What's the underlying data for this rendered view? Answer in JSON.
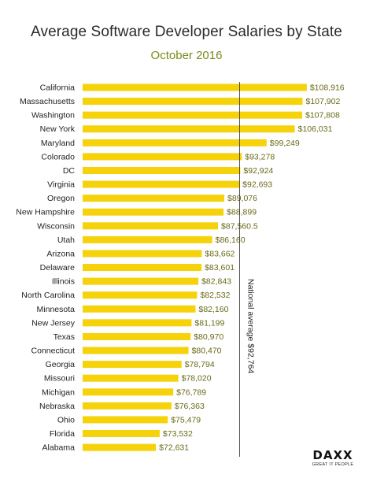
{
  "header": {
    "title": "Average Software Developer Salaries by State",
    "subtitle": "October 2016"
  },
  "colors": {
    "bar": "#f5d20a",
    "value_text": "#6a6a18",
    "avg_line": "#2a2a2a",
    "subtitle": "#7a8a1a"
  },
  "chart_data": {
    "type": "bar",
    "orientation": "horizontal",
    "title": "Average Software Developer Salaries by State",
    "subtitle": "October 2016",
    "categories": [
      "California",
      "Massachusetts",
      "Washington",
      "New York",
      "Maryland",
      "Colorado",
      "DC",
      "Virginia",
      "Oregon",
      "New Hampshire",
      "Wisconsin",
      "Utah",
      "Arizona",
      "Delaware",
      "Illinois",
      "North Carolina",
      "Minnesota",
      "New Jersey",
      "Texas",
      "Connecticut",
      "Georgia",
      "Missouri",
      "Michigan",
      "Nebraska",
      "Ohio",
      "Florida",
      "Alabama"
    ],
    "values": [
      108916,
      107902,
      107808,
      106031,
      99249,
      93278,
      92924,
      92693,
      89076,
      88899,
      87560.5,
      86160,
      83662,
      83601,
      82843,
      82532,
      82160,
      81199,
      80970,
      80470,
      78794,
      78020,
      76789,
      76363,
      75479,
      73532,
      72631
    ],
    "value_labels": [
      "$108,916",
      "$107,902",
      "$107,808",
      "$106,031",
      "$99,249",
      "$93,278",
      "$92,924",
      "$92,693",
      "$89,076",
      "$88,899",
      "$87,560.5",
      "$86,160",
      "$83,662",
      "$83,601",
      "$82,843",
      "$82,532",
      "$82,160",
      "$81,199",
      "$80,970",
      "$80,470",
      "$78,794",
      "$78,020",
      "$76,789",
      "$76,363",
      "$75,479",
      "$73,532",
      "$72,631"
    ],
    "reference_line": {
      "value": 92764,
      "label": "National average $92,764"
    },
    "xlim": [
      55000,
      109000
    ],
    "grid": false,
    "legend": "none"
  },
  "logo": {
    "name": "DAXX",
    "tagline": "GREAT IT PEOPLE"
  }
}
